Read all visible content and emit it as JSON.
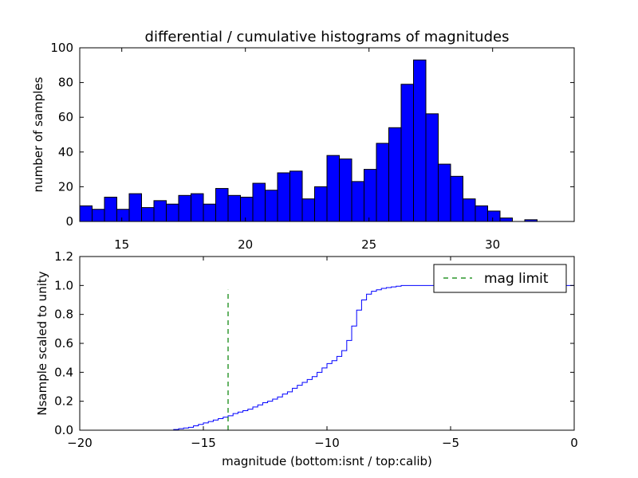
{
  "chart_data": [
    {
      "type": "bar",
      "title": "differential / cumulative histograms of magnitudes",
      "xlabel": "",
      "ylabel": "number of samples",
      "xlim": [
        13.3,
        33.3
      ],
      "ylim": [
        0,
        100
      ],
      "xticks": [
        "15",
        "20",
        "25",
        "30"
      ],
      "yticks": [
        "0",
        "20",
        "40",
        "60",
        "80",
        "100"
      ],
      "bin_start": 13.3,
      "bin_width": 0.5,
      "values": [
        9,
        7,
        14,
        7,
        16,
        8,
        12,
        10,
        15,
        16,
        10,
        19,
        15,
        14,
        22,
        18,
        28,
        29,
        13,
        20,
        38,
        36,
        23,
        30,
        45,
        54,
        79,
        93,
        62,
        33,
        26,
        13,
        9,
        6,
        2,
        0,
        1,
        0,
        0,
        0
      ],
      "color": "#0000ff"
    },
    {
      "type": "line",
      "title": "",
      "xlabel": "magnitude (bottom:isnt / top:calib)",
      "ylabel": "Nsample scaled to unity",
      "xlim": [
        -20,
        0
      ],
      "ylim": [
        0,
        1.2
      ],
      "xticks": [
        "−20",
        "−15",
        "−10",
        "−5",
        "0"
      ],
      "yticks": [
        "0.0",
        "0.2",
        "0.4",
        "0.6",
        "0.8",
        "1.0",
        "1.2"
      ],
      "series": [
        {
          "name": "cumulative",
          "color": "#0000ff",
          "step_start": -16.2,
          "step_width": 0.2,
          "values": [
            0.005,
            0.01,
            0.015,
            0.02,
            0.03,
            0.04,
            0.05,
            0.06,
            0.07,
            0.08,
            0.09,
            0.1,
            0.115,
            0.125,
            0.135,
            0.145,
            0.16,
            0.175,
            0.19,
            0.2,
            0.215,
            0.23,
            0.25,
            0.265,
            0.29,
            0.31,
            0.33,
            0.35,
            0.37,
            0.4,
            0.43,
            0.46,
            0.48,
            0.51,
            0.55,
            0.62,
            0.72,
            0.83,
            0.9,
            0.94,
            0.96,
            0.97,
            0.98,
            0.985,
            0.99,
            0.995,
            1.0,
            1.0,
            1.0,
            1.0,
            1.0,
            1.0,
            1.0,
            1.0,
            1.0,
            1.0,
            1.0,
            1.0,
            1.0,
            1.0,
            1.0,
            1.0,
            1.0,
            1.0,
            1.0,
            1.0,
            1.0,
            1.0,
            1.0,
            1.0,
            1.0,
            1.0,
            1.0,
            1.0,
            1.0,
            1.0,
            1.0,
            1.0,
            1.0,
            1.0,
            1.0
          ]
        },
        {
          "name": "mag limit",
          "color": "#008000",
          "style": "dashed",
          "x": -14,
          "y_range": [
            0,
            0.97
          ]
        }
      ],
      "legend": {
        "position": "top-right",
        "entries": [
          "mag limit"
        ]
      }
    }
  ]
}
